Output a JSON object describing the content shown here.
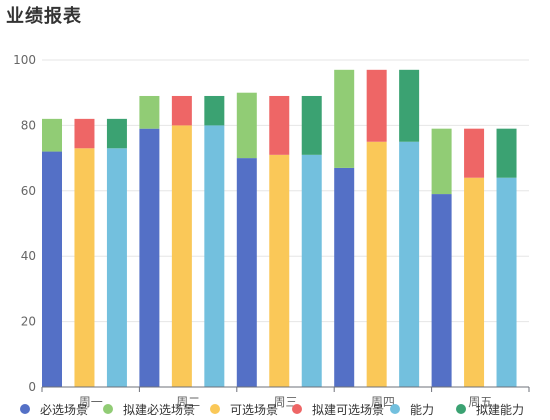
{
  "page_title": "业绩报表",
  "chart_data": {
    "type": "bar",
    "stacked": true,
    "categories": [
      "周一",
      "周二",
      "周三",
      "周四",
      "周五"
    ],
    "ylim": [
      0,
      100
    ],
    "yticks": [
      0,
      20,
      40,
      60,
      80,
      100
    ],
    "grid": true,
    "legend_position": "bottom",
    "bars": [
      {
        "category": "周一",
        "stack": [
          {
            "series": "必选场景",
            "value": 72
          },
          {
            "series": "拟建必选场景",
            "value": 10
          }
        ]
      },
      {
        "category": "周一",
        "stack": [
          {
            "series": "可选场景",
            "value": 73
          },
          {
            "series": "拟建可选场景",
            "value": 9
          }
        ]
      },
      {
        "category": "周一",
        "stack": [
          {
            "series": "能力",
            "value": 73
          },
          {
            "series": "拟建能力",
            "value": 9
          }
        ]
      },
      {
        "category": "周二",
        "stack": [
          {
            "series": "必选场景",
            "value": 79
          },
          {
            "series": "拟建必选场景",
            "value": 10
          }
        ]
      },
      {
        "category": "周二",
        "stack": [
          {
            "series": "可选场景",
            "value": 80
          },
          {
            "series": "拟建可选场景",
            "value": 9
          }
        ]
      },
      {
        "category": "周二",
        "stack": [
          {
            "series": "能力",
            "value": 80
          },
          {
            "series": "拟建能力",
            "value": 9
          }
        ]
      },
      {
        "category": "周三",
        "stack": [
          {
            "series": "必选场景",
            "value": 70
          },
          {
            "series": "拟建必选场景",
            "value": 20
          }
        ]
      },
      {
        "category": "周三",
        "stack": [
          {
            "series": "可选场景",
            "value": 71
          },
          {
            "series": "拟建可选场景",
            "value": 18
          }
        ]
      },
      {
        "category": "周三",
        "stack": [
          {
            "series": "能力",
            "value": 71
          },
          {
            "series": "拟建能力",
            "value": 18
          }
        ]
      },
      {
        "category": "周四",
        "stack": [
          {
            "series": "必选场景",
            "value": 67
          },
          {
            "series": "拟建必选场景",
            "value": 30
          }
        ]
      },
      {
        "category": "周四",
        "stack": [
          {
            "series": "可选场景",
            "value": 75
          },
          {
            "series": "拟建可选场景",
            "value": 22
          }
        ]
      },
      {
        "category": "周四",
        "stack": [
          {
            "series": "能力",
            "value": 75
          },
          {
            "series": "拟建能力",
            "value": 22
          }
        ]
      },
      {
        "category": "周五",
        "stack": [
          {
            "series": "必选场景",
            "value": 59
          },
          {
            "series": "拟建必选场景",
            "value": 20
          }
        ]
      },
      {
        "category": "周五",
        "stack": [
          {
            "series": "可选场景",
            "value": 64
          },
          {
            "series": "拟建可选场景",
            "value": 15
          }
        ]
      },
      {
        "category": "周五",
        "stack": [
          {
            "series": "能力",
            "value": 64
          },
          {
            "series": "拟建能力",
            "value": 15
          }
        ]
      }
    ],
    "series": [
      {
        "name": "必选场景",
        "color": "#5470c6"
      },
      {
        "name": "拟建必选场景",
        "color": "#91cc75"
      },
      {
        "name": "可选场景",
        "color": "#fac858"
      },
      {
        "name": "拟建可选场景",
        "color": "#ee6666"
      },
      {
        "name": "能力",
        "color": "#73c0de"
      },
      {
        "name": "拟建能力",
        "color": "#3ba272"
      }
    ]
  }
}
